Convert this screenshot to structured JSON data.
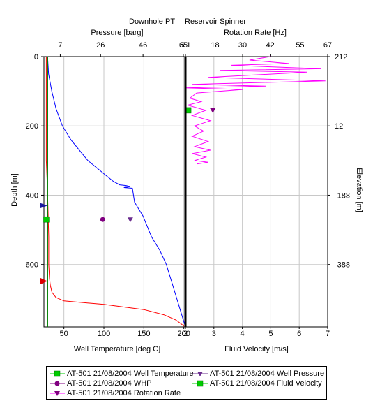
{
  "chart_data": [
    {
      "type": "line",
      "title": "Downhole PT",
      "xlabel_bottom": "Well Temperature [deg C]",
      "xlabel_top": "Pressure [barg]",
      "ylabel_left": "Depth [m]",
      "x_bottom_ticks": [
        "50",
        "100",
        "150",
        "200"
      ],
      "x_top_ticks": [
        "7",
        "26",
        "46",
        "65"
      ],
      "y_left_ticks": [
        "0",
        "200",
        "400",
        "600"
      ],
      "x_bottom_lim": [
        25,
        202
      ],
      "x_top_lim": [
        -0.7,
        66
      ],
      "ylim": [
        0,
        780
      ],
      "series": [
        {
          "name": "AT-501 21/08/2004 Well Temperature",
          "color": "#ff0000",
          "x": [
            28,
            28,
            29,
            30,
            31,
            31,
            32,
            33,
            35,
            40,
            45,
            50,
            100,
            150,
            175,
            190,
            197,
            200
          ],
          "y": [
            0,
            300,
            360,
            430,
            520,
            600,
            640,
            660,
            680,
            695,
            700,
            705,
            715,
            730,
            745,
            760,
            772,
            778
          ]
        },
        {
          "name": "AT-501 21/08/2004 Well Pressure",
          "color": "#0000ff",
          "x": [
            1,
            1.5,
            3,
            5,
            8,
            12,
            16,
            20,
            24,
            28,
            32,
            35,
            38,
            40,
            37,
            41,
            42,
            44,
            46,
            50,
            54,
            57,
            61,
            64,
            66
          ],
          "y": [
            0,
            50,
            100,
            150,
            200,
            240,
            270,
            300,
            320,
            340,
            360,
            370,
            372,
            375,
            378,
            380,
            420,
            440,
            460,
            520,
            560,
            600,
            680,
            740,
            780
          ]
        },
        {
          "name": "AT-501 21/08/2004 WHP",
          "color": "#008000",
          "x": [
            1,
            1
          ],
          "y": [
            0,
            780
          ]
        }
      ],
      "markers": [
        {
          "series": "Well Temperature",
          "x": 28,
          "y": 470,
          "color": "#00cc00"
        },
        {
          "series": "WHP",
          "x": 27,
          "y": 470,
          "color": "#800080"
        },
        {
          "series": "Well Pressure",
          "x": 40,
          "y": 470,
          "color": "#6a2c8e"
        }
      ]
    },
    {
      "type": "line",
      "title": "Reservoir Spinner",
      "xlabel_bottom": "Fluid Velocity [m/s]",
      "xlabel_top": "Rotation Rate [Hz]",
      "ylabel_right": "Elevation [m]",
      "x_bottom_ticks": [
        "2",
        "3",
        "4",
        "5",
        "6",
        "7"
      ],
      "x_top_ticks": [
        "5.1",
        "18",
        "30",
        "42",
        "55",
        "67"
      ],
      "y_right_ticks": [
        "212",
        "12",
        "-188",
        "-388"
      ],
      "x_bottom_lim": [
        2,
        7
      ],
      "x_top_lim": [
        5.1,
        67
      ],
      "ylim": [
        0,
        780
      ],
      "series": [
        {
          "name": "AT-501 21/08/2004 Rotation Rate",
          "color": "#ff00ff",
          "x": [
            42,
            33,
            50,
            25,
            64,
            20,
            58,
            15,
            66,
            8,
            40,
            5,
            30,
            10,
            7,
            12,
            6,
            14,
            8,
            16,
            9,
            13,
            8,
            15,
            9,
            16,
            8,
            14,
            9,
            15,
            10
          ],
          "y": [
            0,
            10,
            20,
            25,
            35,
            40,
            45,
            60,
            70,
            80,
            85,
            90,
            95,
            105,
            120,
            130,
            140,
            155,
            170,
            185,
            200,
            215,
            230,
            245,
            260,
            270,
            280,
            290,
            300,
            305,
            310
          ]
        },
        {
          "name": "AT-501 21/08/2004 Fluid Velocity",
          "color": "#00aa00",
          "x": [
            2.1
          ],
          "y": [
            155
          ]
        }
      ],
      "markers": [
        {
          "series": "Fluid Velocity",
          "x": 2.1,
          "y": 155,
          "color": "#00cc00"
        },
        {
          "series": "Rotation Rate",
          "x": 17,
          "y": 155,
          "color": "#800080"
        }
      ]
    }
  ],
  "legend": {
    "items": [
      {
        "label": "AT-501 21/08/2004 Well Temperature",
        "marker": "square",
        "color": "#00cc00"
      },
      {
        "label": "AT-501 21/08/2004 Well Pressure",
        "marker": "triangle-down",
        "color": "#6a2c8e"
      },
      {
        "label": "AT-501 21/08/2004 WHP",
        "marker": "circle",
        "color": "#800080"
      },
      {
        "label": "AT-501 21/08/2004 Fluid Velocity",
        "marker": "square",
        "color": "#00cc00"
      },
      {
        "label": "AT-501 21/08/2004 Rotation Rate",
        "marker": "triangle-down",
        "color": "#800080"
      }
    ]
  }
}
